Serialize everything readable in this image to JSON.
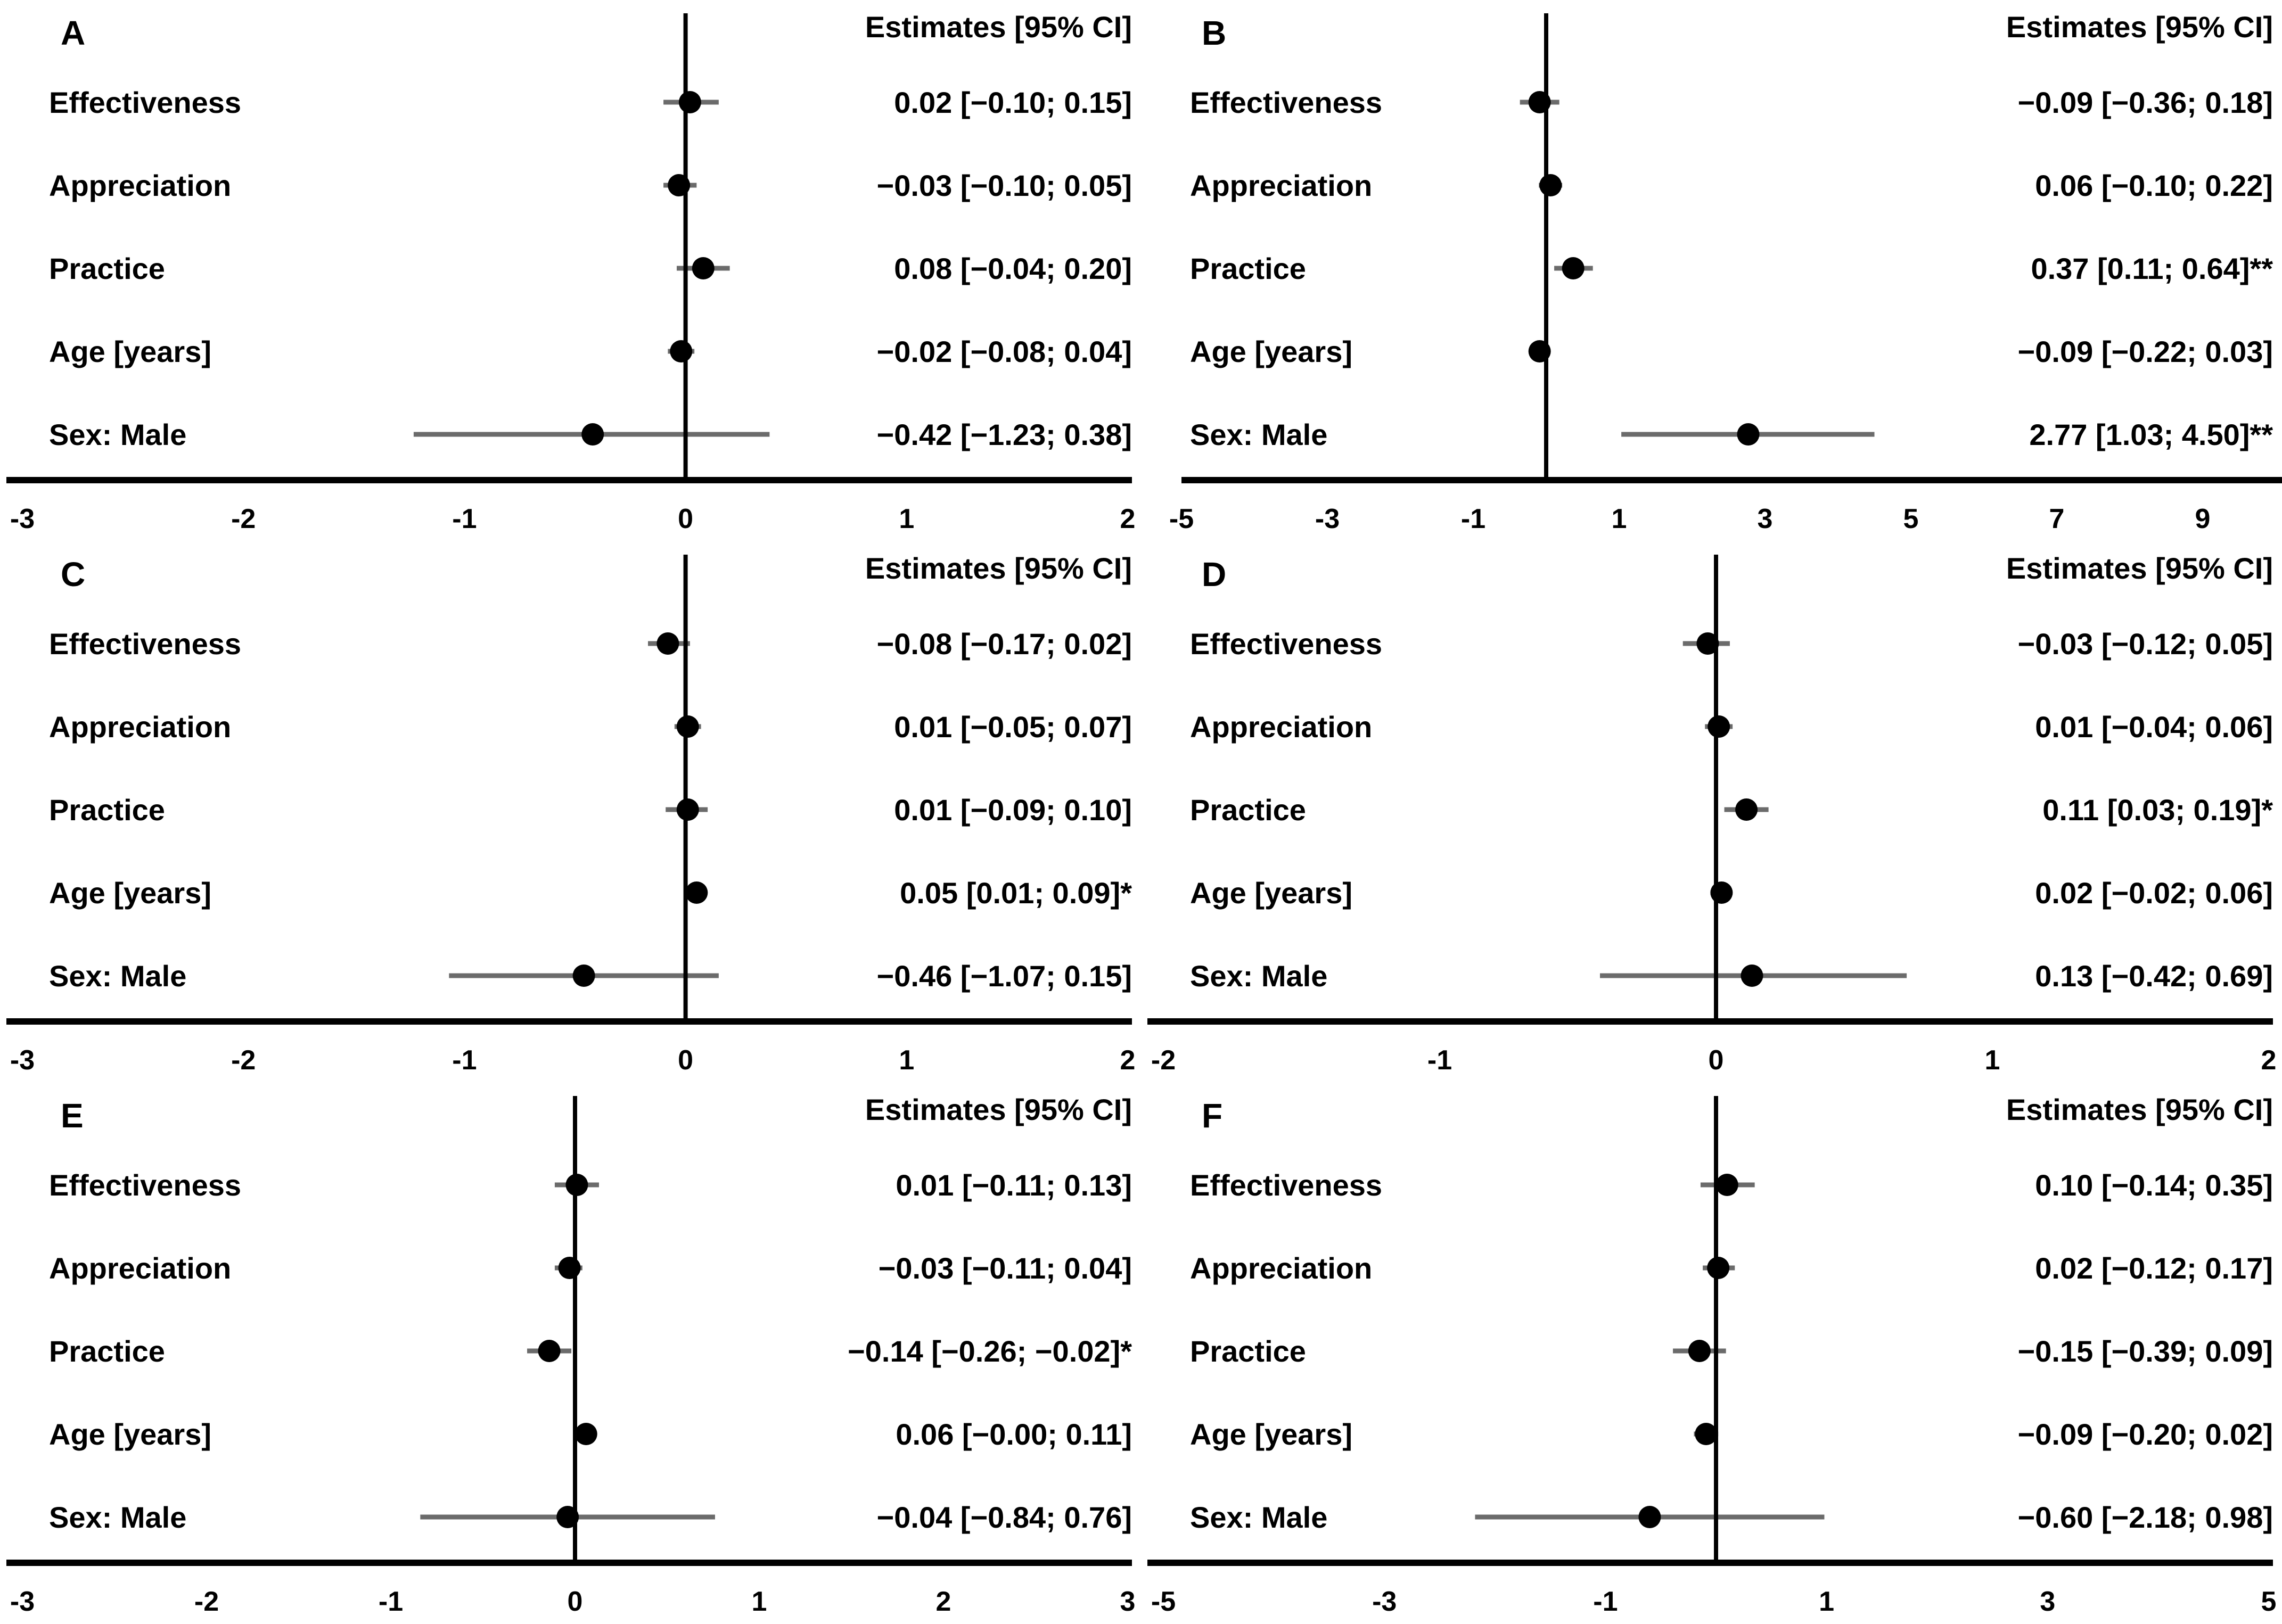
{
  "page": {
    "background": "#ffffff",
    "text_color": "#000000",
    "ci_line_color": "#6b6b6b",
    "marker_color": "#000000",
    "axis_color": "#000000"
  },
  "chart_data": [
    {
      "type": "scatter",
      "subtype": "forest-plot",
      "panel": "A",
      "header": "Estimates [95% CI]",
      "rows": [
        {
          "label": "Effectiveness",
          "estimate": 0.02,
          "ci_low": -0.1,
          "ci_high": 0.15,
          "estimate_text": "0.02 [−0.10; 0.15]"
        },
        {
          "label": "Appreciation",
          "estimate": -0.03,
          "ci_low": -0.1,
          "ci_high": 0.05,
          "estimate_text": "−0.03 [−0.10; 0.05]"
        },
        {
          "label": "Practice",
          "estimate": 0.08,
          "ci_low": -0.04,
          "ci_high": 0.2,
          "estimate_text": "0.08 [−0.04; 0.20]"
        },
        {
          "label": "Age [years]",
          "estimate": -0.02,
          "ci_low": -0.08,
          "ci_high": 0.04,
          "estimate_text": "−0.02 [−0.08; 0.04]"
        },
        {
          "label": "Sex: Male",
          "estimate": -0.42,
          "ci_low": -1.23,
          "ci_high": 0.38,
          "estimate_text": "−0.42 [−1.23; 0.38]"
        }
      ],
      "axis": {
        "vmin": -3,
        "vmax": 2,
        "zero_line": 0,
        "extend_right": false,
        "ticks": [
          -3,
          -2,
          -1,
          0,
          1,
          2
        ],
        "tick_labels": [
          "-3",
          "-2",
          "-1",
          "0",
          "1",
          "2"
        ]
      }
    },
    {
      "type": "scatter",
      "subtype": "forest-plot",
      "panel": "B",
      "header": "Estimates [95% CI]",
      "rows": [
        {
          "label": "Effectiveness",
          "estimate": -0.09,
          "ci_low": -0.36,
          "ci_high": 0.18,
          "estimate_text": "−0.09 [−0.36; 0.18]"
        },
        {
          "label": "Appreciation",
          "estimate": 0.06,
          "ci_low": -0.1,
          "ci_high": 0.22,
          "estimate_text": "0.06 [−0.10; 0.22]"
        },
        {
          "label": "Practice",
          "estimate": 0.37,
          "ci_low": 0.11,
          "ci_high": 0.64,
          "estimate_text": "0.37 [0.11; 0.64]**"
        },
        {
          "label": "Age [years]",
          "estimate": -0.09,
          "ci_low": -0.22,
          "ci_high": 0.03,
          "estimate_text": "−0.09 [−0.22; 0.03]"
        },
        {
          "label": "Sex: Male",
          "estimate": 2.77,
          "ci_low": 1.03,
          "ci_high": 4.5,
          "estimate_text": "2.77 [1.03; 4.50]**"
        }
      ],
      "axis": {
        "vmin": -5,
        "vmax": 9,
        "zero_line": 0,
        "extend_right": true,
        "ticks": [
          -5,
          -3,
          -1,
          1,
          3,
          5,
          7,
          9
        ],
        "tick_labels": [
          "-5",
          "-3",
          "-1",
          "1",
          "3",
          "5",
          "7",
          "9"
        ]
      }
    },
    {
      "type": "scatter",
      "subtype": "forest-plot",
      "panel": "C",
      "header": "Estimates [95% CI]",
      "rows": [
        {
          "label": "Effectiveness",
          "estimate": -0.08,
          "ci_low": -0.17,
          "ci_high": 0.02,
          "estimate_text": "−0.08 [−0.17; 0.02]"
        },
        {
          "label": "Appreciation",
          "estimate": 0.01,
          "ci_low": -0.05,
          "ci_high": 0.07,
          "estimate_text": "0.01 [−0.05; 0.07]"
        },
        {
          "label": "Practice",
          "estimate": 0.01,
          "ci_low": -0.09,
          "ci_high": 0.1,
          "estimate_text": "0.01 [−0.09; 0.10]"
        },
        {
          "label": "Age [years]",
          "estimate": 0.05,
          "ci_low": 0.01,
          "ci_high": 0.09,
          "estimate_text": "0.05 [0.01; 0.09]*"
        },
        {
          "label": "Sex: Male",
          "estimate": -0.46,
          "ci_low": -1.07,
          "ci_high": 0.15,
          "estimate_text": "−0.46 [−1.07; 0.15]"
        }
      ],
      "axis": {
        "vmin": -3,
        "vmax": 2,
        "zero_line": 0,
        "extend_right": false,
        "ticks": [
          -3,
          -2,
          -1,
          0,
          1,
          2
        ],
        "tick_labels": [
          "-3",
          "-2",
          "-1",
          "0",
          "1",
          "2"
        ]
      }
    },
    {
      "type": "scatter",
      "subtype": "forest-plot",
      "panel": "D",
      "header": "Estimates [95% CI]",
      "rows": [
        {
          "label": "Effectiveness",
          "estimate": -0.03,
          "ci_low": -0.12,
          "ci_high": 0.05,
          "estimate_text": "−0.03 [−0.12; 0.05]"
        },
        {
          "label": "Appreciation",
          "estimate": 0.01,
          "ci_low": -0.04,
          "ci_high": 0.06,
          "estimate_text": "0.01 [−0.04; 0.06]"
        },
        {
          "label": "Practice",
          "estimate": 0.11,
          "ci_low": 0.03,
          "ci_high": 0.19,
          "estimate_text": "0.11 [0.03; 0.19]*"
        },
        {
          "label": "Age [years]",
          "estimate": 0.02,
          "ci_low": -0.02,
          "ci_high": 0.06,
          "estimate_text": "0.02 [−0.02; 0.06]"
        },
        {
          "label": "Sex: Male",
          "estimate": 0.13,
          "ci_low": -0.42,
          "ci_high": 0.69,
          "estimate_text": "0.13 [−0.42; 0.69]"
        }
      ],
      "axis": {
        "vmin": -2,
        "vmax": 2,
        "zero_line": 0,
        "extend_right": false,
        "ticks": [
          -2,
          -1,
          0,
          1,
          2
        ],
        "tick_labels": [
          "-2",
          "-1",
          "0",
          "1",
          "2"
        ]
      }
    },
    {
      "type": "scatter",
      "subtype": "forest-plot",
      "panel": "E",
      "header": "Estimates [95% CI]",
      "rows": [
        {
          "label": "Effectiveness",
          "estimate": 0.01,
          "ci_low": -0.11,
          "ci_high": 0.13,
          "estimate_text": "0.01 [−0.11; 0.13]"
        },
        {
          "label": "Appreciation",
          "estimate": -0.03,
          "ci_low": -0.11,
          "ci_high": 0.04,
          "estimate_text": "−0.03 [−0.11; 0.04]"
        },
        {
          "label": "Practice",
          "estimate": -0.14,
          "ci_low": -0.26,
          "ci_high": -0.02,
          "estimate_text": "−0.14 [−0.26; −0.02]*"
        },
        {
          "label": "Age [years]",
          "estimate": 0.06,
          "ci_low": -0.0,
          "ci_high": 0.11,
          "estimate_text": "0.06 [−0.00; 0.11]"
        },
        {
          "label": "Sex: Male",
          "estimate": -0.04,
          "ci_low": -0.84,
          "ci_high": 0.76,
          "estimate_text": "−0.04 [−0.84; 0.76]"
        }
      ],
      "axis": {
        "vmin": -3,
        "vmax": 3,
        "zero_line": 0,
        "extend_right": false,
        "ticks": [
          -3,
          -2,
          -1,
          0,
          1,
          2,
          3
        ],
        "tick_labels": [
          "-3",
          "-2",
          "-1",
          "0",
          "1",
          "2",
          "3"
        ]
      }
    },
    {
      "type": "scatter",
      "subtype": "forest-plot",
      "panel": "F",
      "header": "Estimates [95% CI]",
      "rows": [
        {
          "label": "Effectiveness",
          "estimate": 0.1,
          "ci_low": -0.14,
          "ci_high": 0.35,
          "estimate_text": "0.10 [−0.14; 0.35]"
        },
        {
          "label": "Appreciation",
          "estimate": 0.02,
          "ci_low": -0.12,
          "ci_high": 0.17,
          "estimate_text": "0.02 [−0.12; 0.17]"
        },
        {
          "label": "Practice",
          "estimate": -0.15,
          "ci_low": -0.39,
          "ci_high": 0.09,
          "estimate_text": "−0.15 [−0.39; 0.09]"
        },
        {
          "label": "Age [years]",
          "estimate": -0.09,
          "ci_low": -0.2,
          "ci_high": 0.02,
          "estimate_text": "−0.09 [−0.20; 0.02]"
        },
        {
          "label": "Sex: Male",
          "estimate": -0.6,
          "ci_low": -2.18,
          "ci_high": 0.98,
          "estimate_text": "−0.60 [−2.18; 0.98]"
        }
      ],
      "axis": {
        "vmin": -5,
        "vmax": 5,
        "zero_line": 0,
        "extend_right": false,
        "ticks": [
          -5,
          -3,
          -1,
          1,
          3,
          5
        ],
        "tick_labels": [
          "-5",
          "-3",
          "-1",
          "1",
          "3",
          "5"
        ]
      }
    }
  ]
}
